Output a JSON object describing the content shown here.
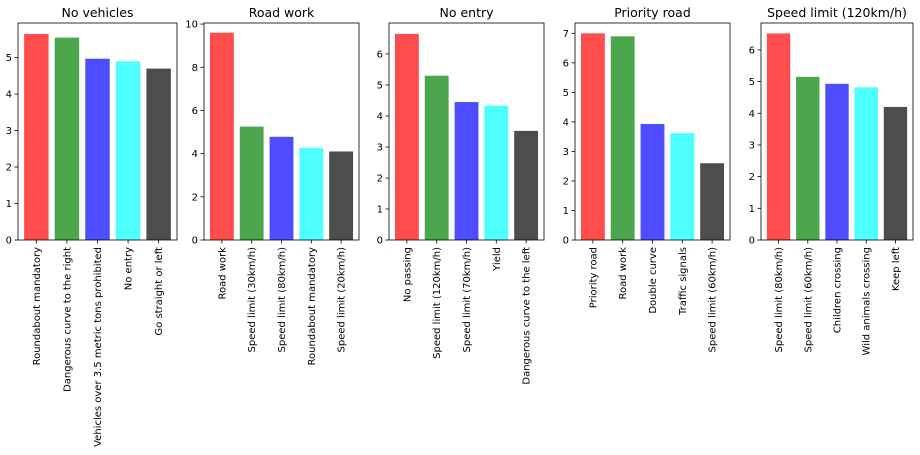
{
  "colors": [
    "#ff4d4d",
    "#4ca64c",
    "#4d4dff",
    "#4dffff",
    "#4d4d4d"
  ],
  "chart_data": [
    {
      "type": "bar",
      "title": "No vehicles",
      "categories": [
        "Roundabout mandatory",
        "Dangerous curve to the right",
        "Vehicles over 3.5 metric tons prohibited",
        "No entry",
        "Go straight or left"
      ],
      "values": [
        5.65,
        5.55,
        4.97,
        4.9,
        4.7
      ],
      "ylim": [
        0,
        5.95
      ],
      "yticks": [
        0,
        1,
        2,
        3,
        4,
        5
      ],
      "grid": false
    },
    {
      "type": "bar",
      "title": "Road work",
      "categories": [
        "Road work",
        "Speed limit (30km/h)",
        "Speed limit (80km/h)",
        "Roundabout mandatory",
        "Speed limit (20km/h)"
      ],
      "values": [
        9.6,
        5.25,
        4.78,
        4.27,
        4.1
      ],
      "ylim": [
        0,
        10.05
      ],
      "yticks": [
        0,
        2,
        4,
        6,
        8,
        10
      ],
      "grid": false
    },
    {
      "type": "bar",
      "title": "No entry",
      "categories": [
        "No passing",
        "Speed limit (120km/h)",
        "Speed limit (70km/h)",
        "Yield",
        "Dangerous curve to the left"
      ],
      "values": [
        6.65,
        5.3,
        4.45,
        4.33,
        3.52
      ],
      "ylim": [
        0,
        7.0
      ],
      "yticks": [
        0,
        1,
        2,
        3,
        4,
        5,
        6
      ],
      "grid": false
    },
    {
      "type": "bar",
      "title": "Priority road",
      "categories": [
        "Priority road",
        "Road work",
        "Double curve",
        "Traffic signals",
        "Speed limit (60km/h)"
      ],
      "values": [
        7.0,
        6.9,
        3.93,
        3.62,
        2.6
      ],
      "ylim": [
        0,
        7.35
      ],
      "yticks": [
        0,
        1,
        2,
        3,
        4,
        5,
        6,
        7
      ],
      "grid": false
    },
    {
      "type": "bar",
      "title": "Speed limit (120km/h)",
      "categories": [
        "Speed limit (80km/h)",
        "Speed limit (60km/h)",
        "Children crossing",
        "Wild animals crossing",
        "Keep left"
      ],
      "values": [
        6.52,
        5.15,
        4.93,
        4.82,
        4.2
      ],
      "ylim": [
        0,
        6.85
      ],
      "yticks": [
        0,
        1,
        2,
        3,
        4,
        5,
        6
      ],
      "grid": false
    }
  ]
}
